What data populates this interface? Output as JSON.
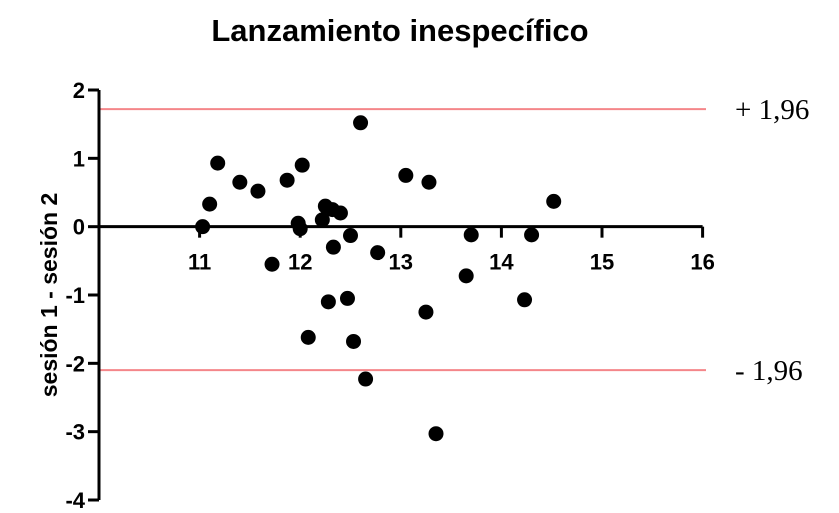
{
  "chart_data": {
    "type": "scatter",
    "title": "Lanzamiento inespecífico",
    "xlabel": "",
    "ylabel": "sesión 1 - sesión 2",
    "xlim": [
      10,
      16
    ],
    "ylim": [
      -4,
      2
    ],
    "x_ticks": [
      "11",
      "12",
      "13",
      "14",
      "15",
      "16"
    ],
    "y_ticks": [
      "2",
      "1",
      "0",
      "-1",
      "-2",
      "-3",
      "-4"
    ],
    "reference_lines": [
      {
        "y": 1.72,
        "label": "+ 1,96",
        "color": "#f4868a"
      },
      {
        "y": -2.1,
        "label": "- 1,96",
        "color": "#f4868a"
      }
    ],
    "point_color": "#000000",
    "points": [
      {
        "x": 11.03,
        "y": 0.0
      },
      {
        "x": 11.1,
        "y": 0.33
      },
      {
        "x": 11.18,
        "y": 0.93
      },
      {
        "x": 11.4,
        "y": 0.65
      },
      {
        "x": 11.58,
        "y": 0.52
      },
      {
        "x": 11.72,
        "y": -0.55
      },
      {
        "x": 11.87,
        "y": 0.68
      },
      {
        "x": 11.98,
        "y": 0.05
      },
      {
        "x": 12.0,
        "y": -0.03
      },
      {
        "x": 12.02,
        "y": 0.9
      },
      {
        "x": 12.08,
        "y": -1.62
      },
      {
        "x": 12.22,
        "y": 0.1
      },
      {
        "x": 12.25,
        "y": 0.3
      },
      {
        "x": 12.28,
        "y": -1.1
      },
      {
        "x": 12.32,
        "y": 0.25
      },
      {
        "x": 12.33,
        "y": -0.3
      },
      {
        "x": 12.4,
        "y": 0.2
      },
      {
        "x": 12.47,
        "y": -1.05
      },
      {
        "x": 12.5,
        "y": -0.13
      },
      {
        "x": 12.53,
        "y": -1.68
      },
      {
        "x": 12.6,
        "y": 1.52
      },
      {
        "x": 12.65,
        "y": -2.23
      },
      {
        "x": 12.77,
        "y": -0.38
      },
      {
        "x": 13.05,
        "y": 0.75
      },
      {
        "x": 13.25,
        "y": -1.25
      },
      {
        "x": 13.28,
        "y": 0.65
      },
      {
        "x": 13.35,
        "y": -3.03
      },
      {
        "x": 13.65,
        "y": -0.72
      },
      {
        "x": 13.7,
        "y": -0.12
      },
      {
        "x": 14.23,
        "y": -1.07
      },
      {
        "x": 14.3,
        "y": -0.12
      },
      {
        "x": 14.52,
        "y": 0.37
      }
    ]
  }
}
